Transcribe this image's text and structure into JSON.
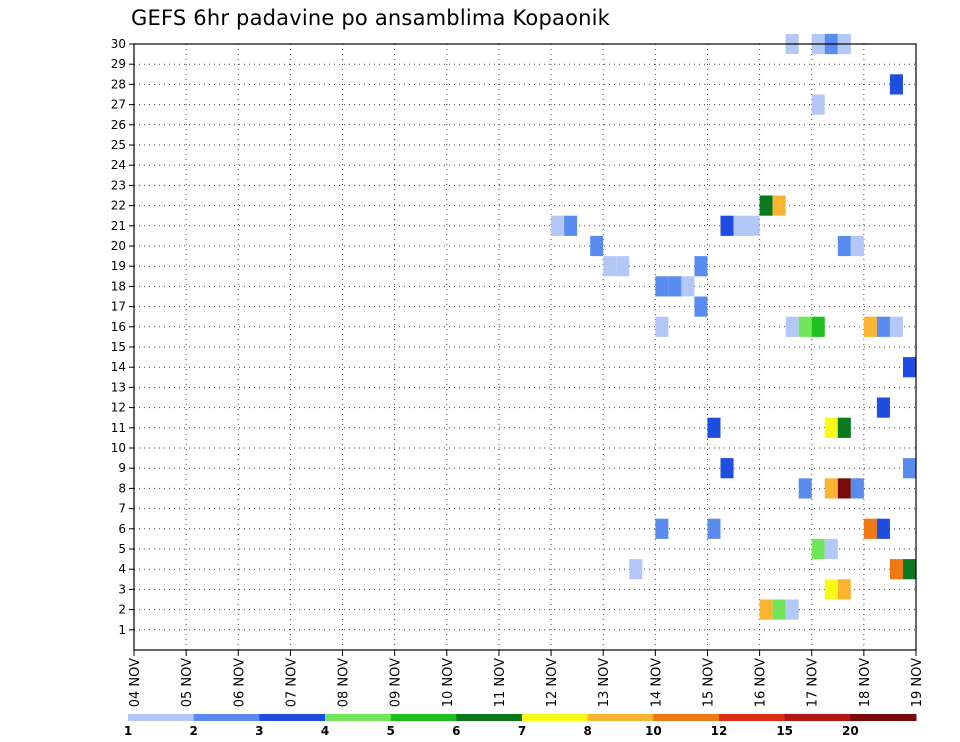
{
  "chart_data": {
    "type": "heatmap",
    "title": "GEFS 6hr padavine po ansamblima Kopaonik",
    "xlabel": "",
    "ylabel": "",
    "x_tick_labels": [
      "04 NOV",
      "05 NOV",
      "06 NOV",
      "07 NOV",
      "08 NOV",
      "09 NOV",
      "10 NOV",
      "11 NOV",
      "12 NOV",
      "13 NOV",
      "14 NOV",
      "15 NOV",
      "16 NOV",
      "17 NOV",
      "18 NOV",
      "19 NOV"
    ],
    "xlim": [
      0,
      60
    ],
    "x_unit": "6h steps from 04 NOV 00Z",
    "ylim": [
      1,
      30
    ],
    "y_ticks": [
      1,
      2,
      3,
      4,
      5,
      6,
      7,
      8,
      9,
      10,
      11,
      12,
      13,
      14,
      15,
      16,
      17,
      18,
      19,
      20,
      21,
      22,
      23,
      24,
      25,
      26,
      27,
      28,
      29,
      30
    ],
    "grid": true,
    "colorbar": {
      "labels": [
        "1",
        "2",
        "3",
        "4",
        "5",
        "6",
        "7",
        "8",
        "10",
        "12",
        "15",
        "20"
      ],
      "colors": [
        "#b4c8f8",
        "#5a8cf0",
        "#1e4ee0",
        "#72e65a",
        "#1ebe1e",
        "#0a781e",
        "#fafa14",
        "#fab432",
        "#f07814",
        "#dc2d14",
        "#b41414",
        "#780a0a"
      ]
    },
    "cells": [
      {
        "x": 50.5,
        "y": 30,
        "c": 1
      },
      {
        "x": 52.5,
        "y": 30,
        "c": 1
      },
      {
        "x": 53.5,
        "y": 30,
        "c": 2
      },
      {
        "x": 54.5,
        "y": 30,
        "c": 1
      },
      {
        "x": 58.5,
        "y": 28,
        "c": 3
      },
      {
        "x": 52.5,
        "y": 27,
        "c": 1
      },
      {
        "x": 48.5,
        "y": 22,
        "c": 6
      },
      {
        "x": 49.5,
        "y": 22,
        "c": 8
      },
      {
        "x": 32.5,
        "y": 21,
        "c": 1
      },
      {
        "x": 33.5,
        "y": 21,
        "c": 2
      },
      {
        "x": 45.5,
        "y": 21,
        "c": 3
      },
      {
        "x": 46.5,
        "y": 21,
        "c": 1
      },
      {
        "x": 47.5,
        "y": 21,
        "c": 1
      },
      {
        "x": 35.5,
        "y": 20,
        "c": 2
      },
      {
        "x": 54.5,
        "y": 20,
        "c": 2
      },
      {
        "x": 55.5,
        "y": 20,
        "c": 1
      },
      {
        "x": 36.5,
        "y": 19,
        "c": 1
      },
      {
        "x": 37.5,
        "y": 19,
        "c": 1
      },
      {
        "x": 43.5,
        "y": 19,
        "c": 2
      },
      {
        "x": 40.5,
        "y": 18,
        "c": 2
      },
      {
        "x": 41.5,
        "y": 18,
        "c": 2
      },
      {
        "x": 42.5,
        "y": 18,
        "c": 1
      },
      {
        "x": 43.5,
        "y": 17,
        "c": 2
      },
      {
        "x": 40.5,
        "y": 16,
        "c": 1
      },
      {
        "x": 50.5,
        "y": 16,
        "c": 1
      },
      {
        "x": 51.5,
        "y": 16,
        "c": 4
      },
      {
        "x": 52.5,
        "y": 16,
        "c": 5
      },
      {
        "x": 56.5,
        "y": 16,
        "c": 8
      },
      {
        "x": 57.5,
        "y": 16,
        "c": 2
      },
      {
        "x": 58.5,
        "y": 16,
        "c": 1
      },
      {
        "x": 59.5,
        "y": 14,
        "c": 3
      },
      {
        "x": 57.5,
        "y": 12,
        "c": 3
      },
      {
        "x": 44.5,
        "y": 11,
        "c": 3
      },
      {
        "x": 53.5,
        "y": 11,
        "c": 7
      },
      {
        "x": 54.5,
        "y": 11,
        "c": 6
      },
      {
        "x": 45.5,
        "y": 9,
        "c": 3
      },
      {
        "x": 59.5,
        "y": 9,
        "c": 2
      },
      {
        "x": 51.5,
        "y": 8,
        "c": 2
      },
      {
        "x": 53.5,
        "y": 8,
        "c": 8
      },
      {
        "x": 54.5,
        "y": 8,
        "c": 12
      },
      {
        "x": 55.5,
        "y": 8,
        "c": 2
      },
      {
        "x": 40.5,
        "y": 6,
        "c": 2
      },
      {
        "x": 44.5,
        "y": 6,
        "c": 2
      },
      {
        "x": 56.5,
        "y": 6,
        "c": 9
      },
      {
        "x": 57.5,
        "y": 6,
        "c": 3
      },
      {
        "x": 52.5,
        "y": 5,
        "c": 4
      },
      {
        "x": 53.5,
        "y": 5,
        "c": 1
      },
      {
        "x": 38.5,
        "y": 4,
        "c": 1
      },
      {
        "x": 58.5,
        "y": 4,
        "c": 9
      },
      {
        "x": 59.5,
        "y": 4,
        "c": 6
      },
      {
        "x": 53.5,
        "y": 3,
        "c": 7
      },
      {
        "x": 54.5,
        "y": 3,
        "c": 8
      },
      {
        "x": 48.5,
        "y": 2,
        "c": 8
      },
      {
        "x": 49.5,
        "y": 2,
        "c": 4
      },
      {
        "x": 50.5,
        "y": 2,
        "c": 1
      }
    ]
  }
}
